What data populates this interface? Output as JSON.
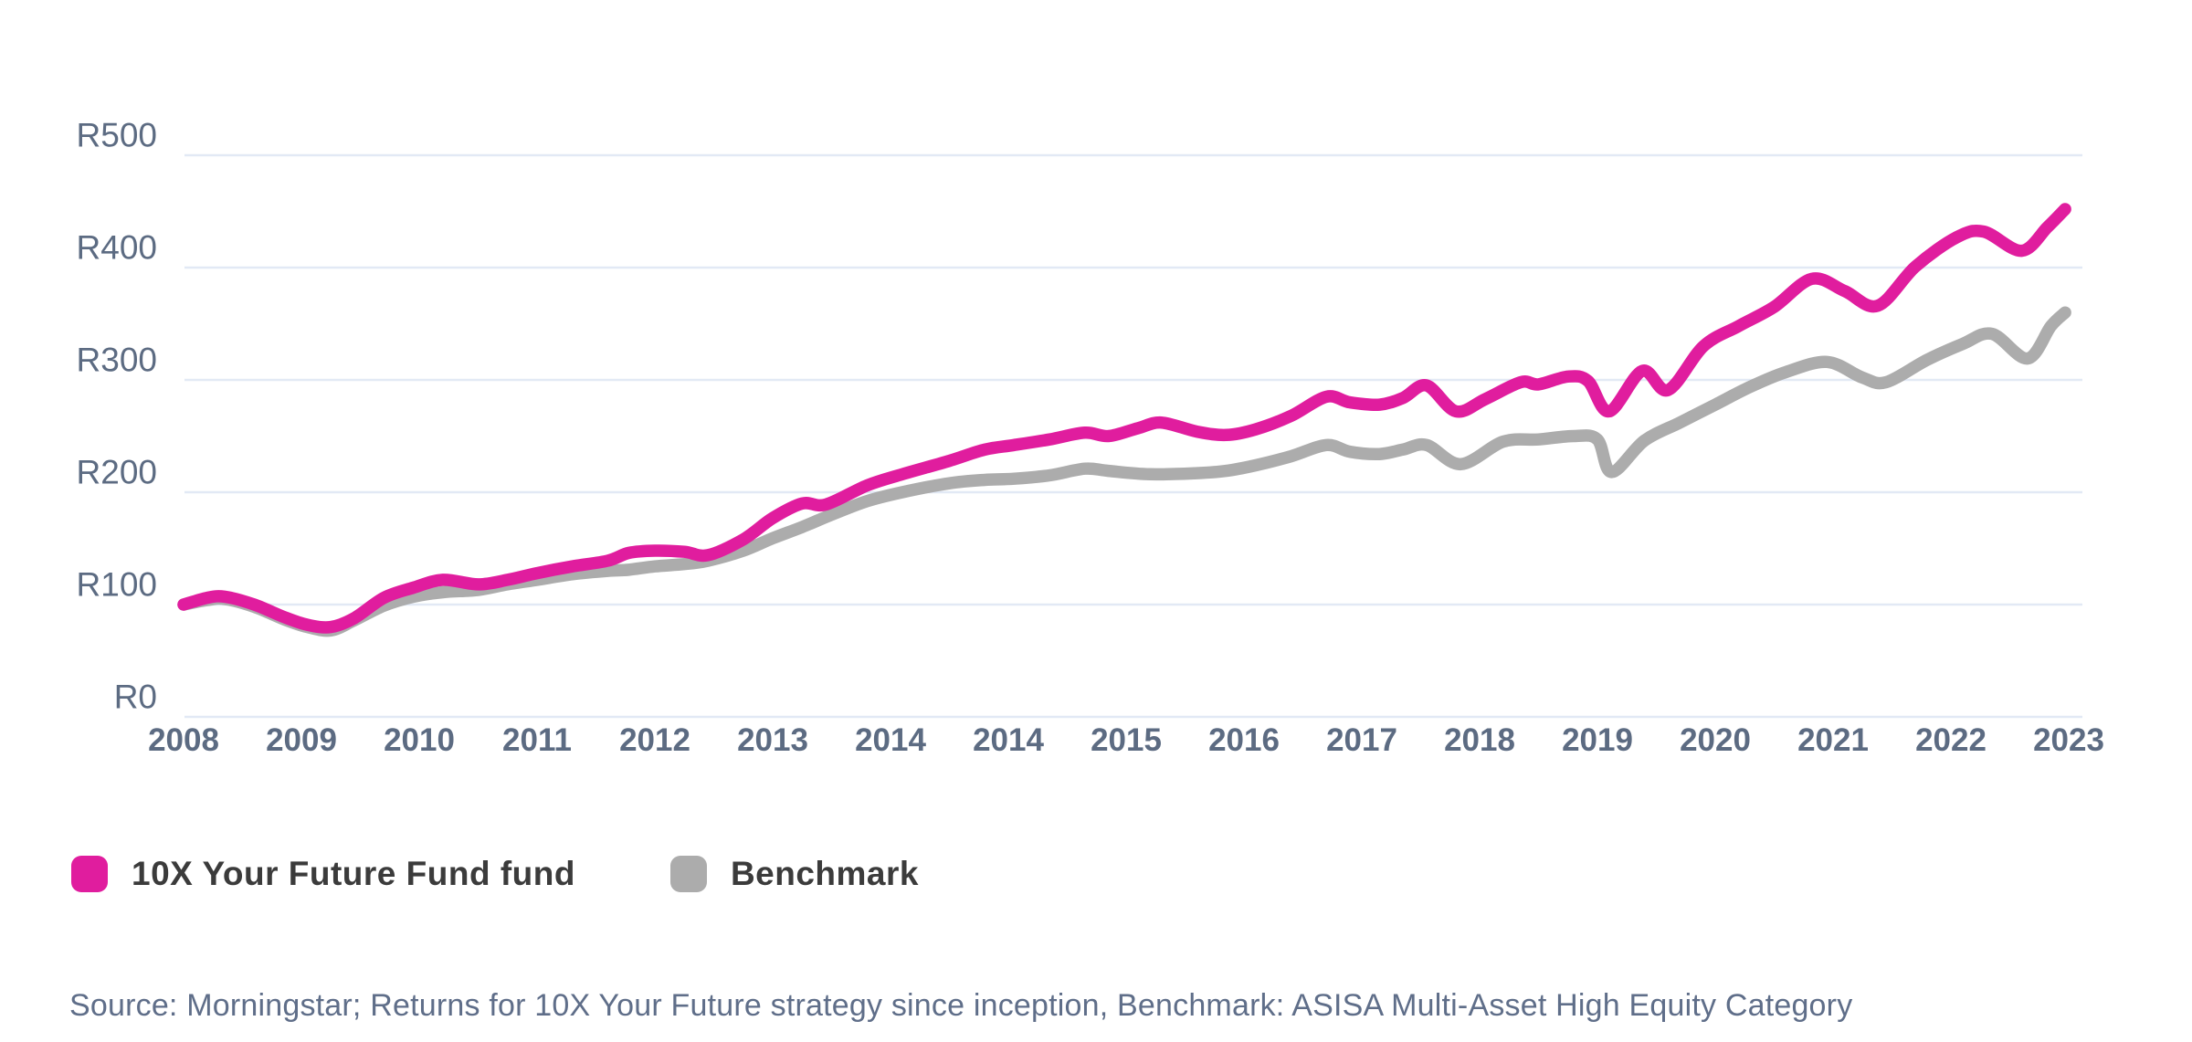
{
  "colors": {
    "fund_pink": "#e01d9e",
    "benchmark_gray": "#acacac",
    "axis_text": "#5c6b82",
    "grid_line": "#e2e9f5",
    "legend_text": "#3b3b3b",
    "source_text": "#5f6e89",
    "background": "#ffffff"
  },
  "legend": {
    "items": [
      {
        "label": "10X Your Future Fund fund",
        "color": "#e01d9e"
      },
      {
        "label": "Benchmark",
        "color": "#acacac"
      }
    ]
  },
  "source_note": "Source: Morningstar; Returns for 10X Your Future strategy since inception, Benchmark: ASISA Multi-Asset High Equity Category",
  "chart_data": {
    "type": "line",
    "title": "",
    "xlabel": "",
    "ylabel": "",
    "grid": "horizontal",
    "legend_position": "bottom-left",
    "ylim": [
      0,
      500
    ],
    "y_ticks": [
      {
        "label": "R500",
        "value": 500
      },
      {
        "label": "R400",
        "value": 400
      },
      {
        "label": "R300",
        "value": 300
      },
      {
        "label": "R200",
        "value": 200
      },
      {
        "label": "R100",
        "value": 100
      },
      {
        "label": "R0",
        "value": 0
      }
    ],
    "x_tick_labels": [
      "2008",
      "2009",
      "2010",
      "2011",
      "2012",
      "2013",
      "2014",
      "2014",
      "2015",
      "2016",
      "2017",
      "2018",
      "2019",
      "2020",
      "2021",
      "2022",
      "2023"
    ],
    "x_note": "x values below are tick-index units (0 = first 2008 tick, 16 = 2023 tick); values are Rand growth of R100 since inception",
    "series": [
      {
        "name": "10X Your Future Fund fund",
        "color": "#e01d9e",
        "points": [
          [
            0,
            100
          ],
          [
            0.2,
            106
          ],
          [
            0.35,
            107
          ],
          [
            0.6,
            100
          ],
          [
            0.85,
            89
          ],
          [
            1.05,
            82
          ],
          [
            1.25,
            80
          ],
          [
            1.45,
            88
          ],
          [
            1.7,
            106
          ],
          [
            1.95,
            115
          ],
          [
            2.2,
            122
          ],
          [
            2.5,
            118
          ],
          [
            2.75,
            122
          ],
          [
            3.0,
            128
          ],
          [
            3.3,
            134
          ],
          [
            3.6,
            139
          ],
          [
            3.78,
            146
          ],
          [
            4.0,
            148
          ],
          [
            4.25,
            147
          ],
          [
            4.45,
            144
          ],
          [
            4.75,
            158
          ],
          [
            5.0,
            177
          ],
          [
            5.25,
            190
          ],
          [
            5.45,
            189
          ],
          [
            5.8,
            206
          ],
          [
            6.1,
            216
          ],
          [
            6.5,
            228
          ],
          [
            6.8,
            238
          ],
          [
            7.05,
            242
          ],
          [
            7.35,
            247
          ],
          [
            7.65,
            253
          ],
          [
            7.85,
            250
          ],
          [
            8.1,
            257
          ],
          [
            8.3,
            262
          ],
          [
            8.6,
            254
          ],
          [
            8.85,
            251
          ],
          [
            9.1,
            256
          ],
          [
            9.4,
            268
          ],
          [
            9.7,
            285
          ],
          [
            9.9,
            280
          ],
          [
            10.15,
            278
          ],
          [
            10.35,
            284
          ],
          [
            10.55,
            295
          ],
          [
            10.8,
            272
          ],
          [
            11.05,
            283
          ],
          [
            11.35,
            298
          ],
          [
            11.5,
            296
          ],
          [
            11.75,
            303
          ],
          [
            11.92,
            299
          ],
          [
            12.1,
            272
          ],
          [
            12.38,
            308
          ],
          [
            12.6,
            291
          ],
          [
            12.9,
            330
          ],
          [
            13.2,
            348
          ],
          [
            13.5,
            365
          ],
          [
            13.82,
            390
          ],
          [
            14.1,
            379
          ],
          [
            14.38,
            366
          ],
          [
            14.7,
            401
          ],
          [
            15.05,
            427
          ],
          [
            15.28,
            432
          ],
          [
            15.6,
            415
          ],
          [
            15.82,
            436
          ],
          [
            15.97,
            452
          ]
        ]
      },
      {
        "name": "Benchmark",
        "color": "#acacac",
        "points": [
          [
            0,
            100
          ],
          [
            0.2,
            104
          ],
          [
            0.35,
            105
          ],
          [
            0.6,
            98
          ],
          [
            0.85,
            87
          ],
          [
            1.05,
            80
          ],
          [
            1.25,
            77
          ],
          [
            1.45,
            86
          ],
          [
            1.7,
            99
          ],
          [
            1.95,
            107
          ],
          [
            2.2,
            111
          ],
          [
            2.5,
            113
          ],
          [
            2.75,
            118
          ],
          [
            3.0,
            122
          ],
          [
            3.3,
            127
          ],
          [
            3.6,
            130
          ],
          [
            3.78,
            131
          ],
          [
            4.0,
            134
          ],
          [
            4.25,
            136
          ],
          [
            4.45,
            139
          ],
          [
            4.75,
            148
          ],
          [
            5.0,
            159
          ],
          [
            5.25,
            169
          ],
          [
            5.5,
            180
          ],
          [
            5.8,
            192
          ],
          [
            6.1,
            200
          ],
          [
            6.5,
            208
          ],
          [
            6.8,
            211
          ],
          [
            7.05,
            212
          ],
          [
            7.35,
            215
          ],
          [
            7.65,
            221
          ],
          [
            7.85,
            219
          ],
          [
            8.2,
            216
          ],
          [
            8.6,
            217
          ],
          [
            8.85,
            219
          ],
          [
            9.1,
            224
          ],
          [
            9.4,
            232
          ],
          [
            9.7,
            242
          ],
          [
            9.9,
            236
          ],
          [
            10.15,
            234
          ],
          [
            10.35,
            238
          ],
          [
            10.55,
            242
          ],
          [
            10.84,
            225
          ],
          [
            11.2,
            245
          ],
          [
            11.5,
            247
          ],
          [
            11.8,
            250
          ],
          [
            12.0,
            247
          ],
          [
            12.12,
            218
          ],
          [
            12.4,
            246
          ],
          [
            12.7,
            262
          ],
          [
            13.0,
            278
          ],
          [
            13.3,
            294
          ],
          [
            13.6,
            307
          ],
          [
            13.95,
            316
          ],
          [
            14.25,
            302
          ],
          [
            14.45,
            298
          ],
          [
            14.8,
            318
          ],
          [
            15.1,
            332
          ],
          [
            15.35,
            341
          ],
          [
            15.65,
            319
          ],
          [
            15.85,
            348
          ],
          [
            15.97,
            360
          ]
        ]
      }
    ]
  }
}
